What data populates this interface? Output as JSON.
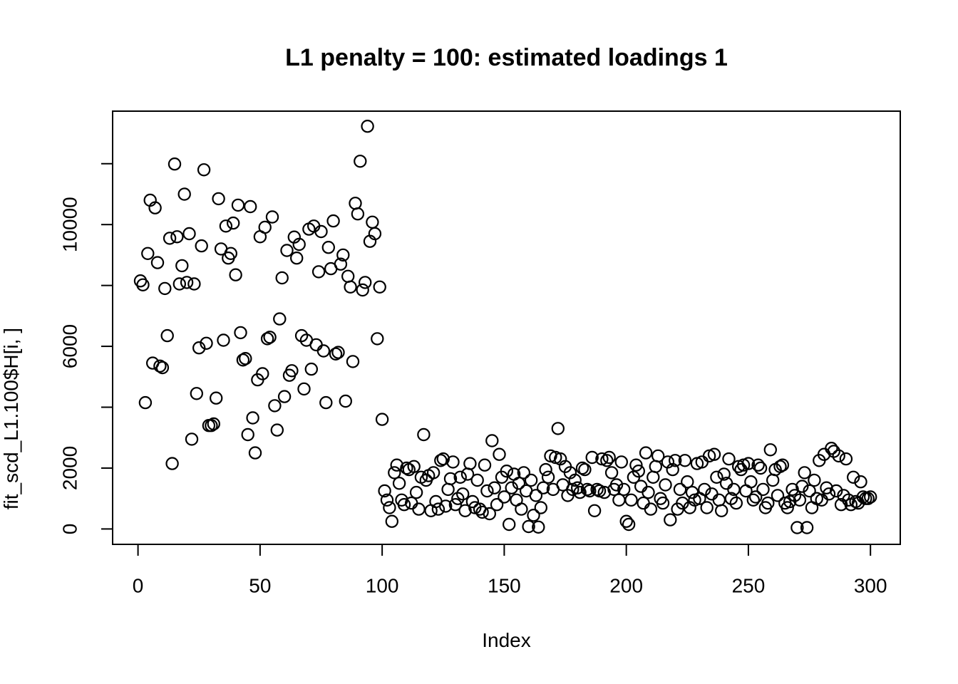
{
  "window": {
    "background_color": "#ffffff",
    "foreground_color": "#000000"
  },
  "chart_data": {
    "type": "scatter",
    "title": "L1 penalty = 100: estimated loadings 1",
    "xlabel": "Index",
    "ylabel": "fit_scd_L1.100$H[i, ]",
    "marker": "open-circle",
    "marker_color": "#000000",
    "grid": false,
    "legend": null,
    "x_description": "implicit index 1..300",
    "n_points": 300,
    "xlim": [
      -11,
      312
    ],
    "ylim": [
      -500,
      13750
    ],
    "x_ticks": [
      0,
      50,
      100,
      150,
      200,
      250,
      300
    ],
    "x_tick_labels": [
      "0",
      "50",
      "100",
      "150",
      "200",
      "250",
      "300"
    ],
    "y_ticks": [
      0,
      2000,
      4000,
      6000,
      8000,
      10000,
      12000
    ],
    "y_tick_labels": [
      "0",
      "2000",
      "",
      "6000",
      "",
      "10000",
      ""
    ],
    "values": [
      8150,
      8020,
      4150,
      9050,
      10800,
      5450,
      10550,
      8750,
      5350,
      5300,
      7900,
      6350,
      9550,
      2150,
      11990,
      9600,
      8050,
      8650,
      11000,
      8100,
      9700,
      2950,
      8050,
      4450,
      5950,
      9300,
      11800,
      6100,
      3400,
      3400,
      3450,
      4300,
      10850,
      9200,
      6200,
      9950,
      8900,
      9050,
      10050,
      8350,
      10640,
      6450,
      5550,
      5600,
      3100,
      10590,
      3650,
      2500,
      4900,
      9600,
      5100,
      9910,
      6250,
      6300,
      10250,
      4050,
      3250,
      6900,
      8250,
      4350,
      9150,
      5050,
      5200,
      9590,
      8900,
      9350,
      6350,
      4600,
      6200,
      9850,
      5250,
      9950,
      6050,
      8450,
      9770,
      5850,
      4150,
      9250,
      8550,
      10120,
      5750,
      5800,
      8700,
      9000,
      4200,
      8300,
      7950,
      5500,
      10700,
      10350,
      12080,
      7850,
      8100,
      13230,
      9450,
      10080,
      9700,
      6250,
      7950,
      3600,
      1250,
      950,
      700,
      250,
      1850,
      2100,
      1500,
      950,
      800,
      2000,
      1950,
      850,
      2050,
      1200,
      650,
      1700,
      3100,
      1600,
      1750,
      600,
      1850,
      900,
      650,
      2250,
      2300,
      750,
      1300,
      1650,
      2200,
      800,
      1000,
      1700,
      1150,
      600,
      1800,
      2150,
      900,
      700,
      1600,
      650,
      550,
      2100,
      1250,
      500,
      2900,
      1350,
      800,
      2450,
      1700,
      1050,
      1900,
      150,
      1350,
      1800,
      950,
      1500,
      650,
      1850,
      1250,
      80,
      1600,
      450,
      1100,
      60,
      700,
      1350,
      1950,
      1700,
      2400,
      1300,
      2350,
      3300,
      2300,
      1450,
      2050,
      1100,
      1850,
      1300,
      1600,
      1350,
      1200,
      2000,
      1950,
      1300,
      1250,
      2350,
      600,
      1300,
      1250,
      2300,
      1200,
      2250,
      2350,
      1850,
      1300,
      1450,
      950,
      2200,
      1300,
      250,
      150,
      950,
      1700,
      2100,
      1900,
      1400,
      850,
      2500,
      1200,
      650,
      1700,
      2050,
      2400,
      1000,
      850,
      1450,
      2200,
      300,
      1950,
      2250,
      650,
      1300,
      850,
      2250,
      1550,
      700,
      1200,
      950,
      2150,
      1000,
      2200,
      1300,
      700,
      2400,
      1150,
      2450,
      1700,
      950,
      600,
      1800,
      1500,
      2300,
      1000,
      1300,
      850,
      2050,
      1950,
      2100,
      1250,
      2150,
      1550,
      950,
      1050,
      2100,
      2000,
      1300,
      700,
      850,
      2600,
      1600,
      1950,
      1100,
      2050,
      2100,
      850,
      700,
      900,
      1300,
      1100,
      45,
      950,
      1400,
      1850,
      45,
      1250,
      700,
      1600,
      1000,
      2250,
      950,
      2450,
      1350,
      1150,
      2650,
      2550,
      1250,
      2400,
      800,
      1100,
      2300,
      950,
      800,
      1700,
      900,
      850,
      1550,
      1050,
      1000,
      1000,
      1050
    ]
  }
}
